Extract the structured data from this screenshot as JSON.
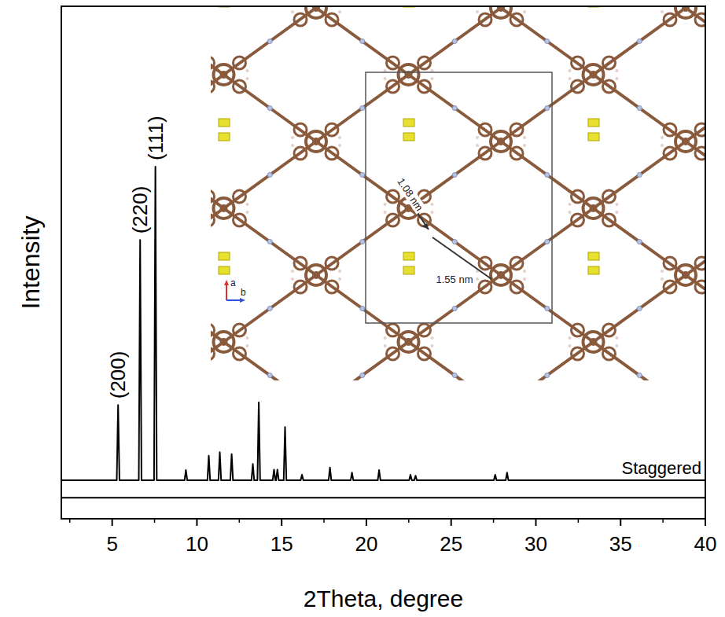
{
  "chart_data": {
    "type": "line",
    "x_label": "2Theta, degree",
    "y_label": "Intensity",
    "x": [
      2,
      5.27,
      5.35,
      5.43,
      6.57,
      6.65,
      6.73,
      7.47,
      7.55,
      7.63,
      9.27,
      9.35,
      9.43,
      10.62,
      10.7,
      10.78,
      11.27,
      11.35,
      11.43,
      11.97,
      12.05,
      12.13,
      13.22,
      13.3,
      13.38,
      13.57,
      13.65,
      13.73,
      14.47,
      14.55,
      14.63,
      14.67,
      14.75,
      14.83,
      15.12,
      15.2,
      15.28,
      16.12,
      16.2,
      16.28,
      17.77,
      17.85,
      17.93,
      19.07,
      19.15,
      19.23,
      20.67,
      20.75,
      20.83,
      22.52,
      22.6,
      22.68,
      22.82,
      22.9,
      22.98,
      27.52,
      27.6,
      27.68,
      28.22,
      28.3,
      28.38,
      40
    ],
    "series": [
      {
        "name": "Staggered",
        "color": "#000000",
        "values": [
          7.5,
          7.5,
          22.2,
          7.5,
          7.5,
          54.4,
          7.5,
          7.5,
          68.7,
          7.5,
          7.5,
          9.5,
          7.5,
          7.5,
          12.3,
          7.5,
          7.5,
          13.0,
          7.5,
          7.5,
          12.6,
          7.5,
          7.5,
          10.7,
          7.5,
          7.5,
          22.7,
          7.5,
          7.5,
          9.6,
          7.5,
          7.5,
          9.6,
          7.5,
          7.5,
          17.9,
          7.5,
          7.5,
          8.6,
          7.5,
          7.5,
          10.0,
          7.5,
          7.5,
          9.0,
          7.5,
          7.5,
          9.5,
          7.5,
          7.5,
          8.6,
          7.5,
          7.5,
          8.4,
          7.5,
          7.5,
          8.6,
          7.5,
          7.5,
          9.0,
          7.5,
          7.5
        ]
      },
      {
        "color": "#000000",
        "values": [
          4.1,
          4.1,
          4.1,
          4.1,
          4.1,
          4.1,
          4.1,
          4.1,
          4.1,
          4.1,
          4.1,
          4.1,
          4.1,
          4.1,
          4.1,
          4.1,
          4.1,
          4.1,
          4.1,
          4.1,
          4.1,
          4.1,
          4.1,
          4.1,
          4.1,
          4.1,
          4.1,
          4.1,
          4.1,
          4.1,
          4.1,
          4.1,
          4.1,
          4.1,
          4.1,
          4.1,
          4.1,
          4.1,
          4.1,
          4.1,
          4.1,
          4.1,
          4.1,
          4.1,
          4.1,
          4.1,
          4.1,
          4.1,
          4.1,
          4.1,
          4.1,
          4.1,
          4.1,
          4.1,
          4.1,
          4.1,
          4.1,
          4.1,
          4.1,
          4.1,
          4.1,
          4.1
        ]
      }
    ],
    "annotations": [
      {
        "text": "(200)",
        "x": 5.35
      },
      {
        "text": "(220)",
        "x": 6.65
      },
      {
        "text": "(111)",
        "x": 7.55
      }
    ],
    "xlim": [
      2,
      40
    ],
    "xticks": [
      5,
      10,
      15,
      20,
      25,
      30,
      35,
      40
    ],
    "ylim": [
      0,
      100
    ],
    "yticks": [],
    "tick_labels": "x",
    "grid": false
  },
  "inset": {
    "distances": [
      "1.08 nm",
      "1.55 nm"
    ],
    "axis_labels": [
      "a",
      "b"
    ]
  }
}
